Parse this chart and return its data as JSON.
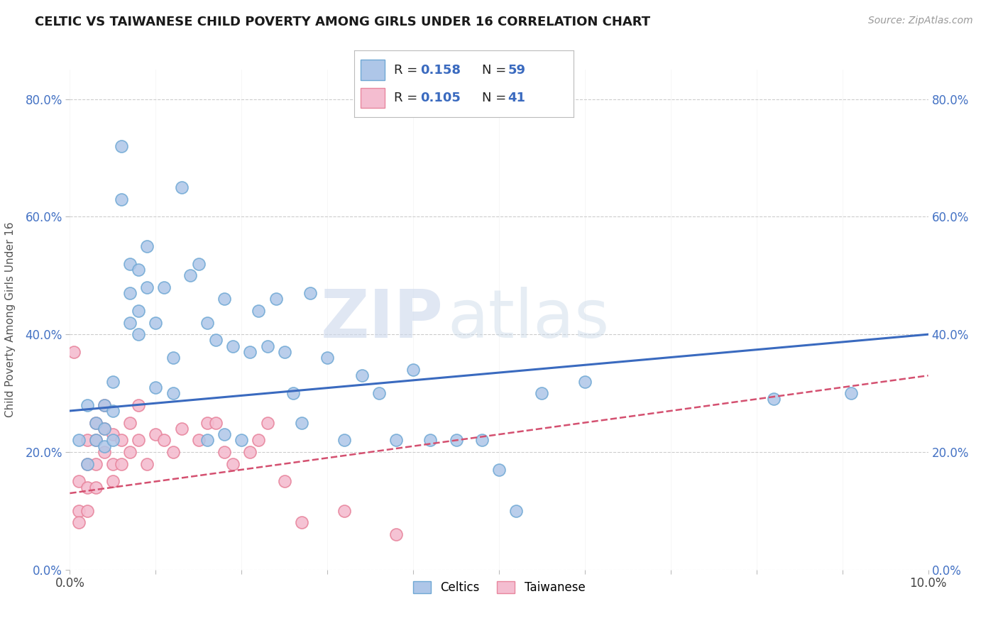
{
  "title": "CELTIC VS TAIWANESE CHILD POVERTY AMONG GIRLS UNDER 16 CORRELATION CHART",
  "source_text": "Source: ZipAtlas.com",
  "ylabel": "Child Poverty Among Girls Under 16",
  "xlim": [
    0.0,
    0.1
  ],
  "ylim": [
    0.0,
    0.85
  ],
  "xticks": [
    0.0,
    0.01,
    0.02,
    0.03,
    0.04,
    0.05,
    0.06,
    0.07,
    0.08,
    0.09,
    0.1
  ],
  "yticks": [
    0.0,
    0.2,
    0.4,
    0.6,
    0.8
  ],
  "ytick_labels": [
    "0.0%",
    "20.0%",
    "40.0%",
    "60.0%",
    "80.0%"
  ],
  "xtick_labels": [
    "0.0%",
    "",
    "",
    "",
    "",
    "",
    "",
    "",
    "",
    "",
    "10.0%"
  ],
  "celtics_color": "#aec6e8",
  "celtics_edge_color": "#6fa8d4",
  "taiwanese_color": "#f4bdd0",
  "taiwanese_edge_color": "#e8869e",
  "line_celtics_color": "#3a6abf",
  "line_taiwanese_color": "#d45070",
  "background_color": "#ffffff",
  "grid_color": "#cccccc",
  "watermark_zip": "ZIP",
  "watermark_atlas": "atlas",
  "legend_R_celtics": "0.158",
  "legend_N_celtics": "59",
  "legend_R_taiwanese": "0.105",
  "legend_N_taiwanese": "41",
  "celtics_x": [
    0.001,
    0.002,
    0.002,
    0.003,
    0.003,
    0.004,
    0.004,
    0.004,
    0.005,
    0.005,
    0.005,
    0.006,
    0.006,
    0.007,
    0.007,
    0.007,
    0.008,
    0.008,
    0.008,
    0.009,
    0.009,
    0.01,
    0.01,
    0.011,
    0.012,
    0.012,
    0.013,
    0.014,
    0.015,
    0.016,
    0.016,
    0.017,
    0.018,
    0.018,
    0.019,
    0.02,
    0.021,
    0.022,
    0.023,
    0.024,
    0.025,
    0.026,
    0.027,
    0.028,
    0.03,
    0.032,
    0.034,
    0.036,
    0.038,
    0.04,
    0.042,
    0.045,
    0.048,
    0.05,
    0.052,
    0.055,
    0.06,
    0.082,
    0.091
  ],
  "celtics_y": [
    0.22,
    0.28,
    0.18,
    0.25,
    0.22,
    0.28,
    0.24,
    0.21,
    0.32,
    0.27,
    0.22,
    0.72,
    0.63,
    0.52,
    0.47,
    0.42,
    0.51,
    0.44,
    0.4,
    0.55,
    0.48,
    0.31,
    0.42,
    0.48,
    0.36,
    0.3,
    0.65,
    0.5,
    0.52,
    0.22,
    0.42,
    0.39,
    0.46,
    0.23,
    0.38,
    0.22,
    0.37,
    0.44,
    0.38,
    0.46,
    0.37,
    0.3,
    0.25,
    0.47,
    0.36,
    0.22,
    0.33,
    0.3,
    0.22,
    0.34,
    0.22,
    0.22,
    0.22,
    0.17,
    0.1,
    0.3,
    0.32,
    0.29,
    0.3
  ],
  "taiwanese_x": [
    0.0005,
    0.001,
    0.001,
    0.001,
    0.002,
    0.002,
    0.002,
    0.002,
    0.003,
    0.003,
    0.003,
    0.003,
    0.004,
    0.004,
    0.004,
    0.005,
    0.005,
    0.005,
    0.006,
    0.006,
    0.007,
    0.007,
    0.008,
    0.008,
    0.009,
    0.01,
    0.011,
    0.012,
    0.013,
    0.015,
    0.016,
    0.017,
    0.018,
    0.019,
    0.021,
    0.022,
    0.023,
    0.025,
    0.027,
    0.032,
    0.038
  ],
  "taiwanese_y": [
    0.37,
    0.15,
    0.1,
    0.08,
    0.22,
    0.18,
    0.14,
    0.1,
    0.25,
    0.22,
    0.18,
    0.14,
    0.28,
    0.24,
    0.2,
    0.23,
    0.18,
    0.15,
    0.22,
    0.18,
    0.25,
    0.2,
    0.28,
    0.22,
    0.18,
    0.23,
    0.22,
    0.2,
    0.24,
    0.22,
    0.25,
    0.25,
    0.2,
    0.18,
    0.2,
    0.22,
    0.25,
    0.15,
    0.08,
    0.1,
    0.06
  ],
  "celtics_line_x0": 0.0,
  "celtics_line_y0": 0.27,
  "celtics_line_x1": 0.1,
  "celtics_line_y1": 0.4,
  "taiwanese_line_x0": 0.0,
  "taiwanese_line_y0": 0.13,
  "taiwanese_line_x1": 0.1,
  "taiwanese_line_y1": 0.33
}
